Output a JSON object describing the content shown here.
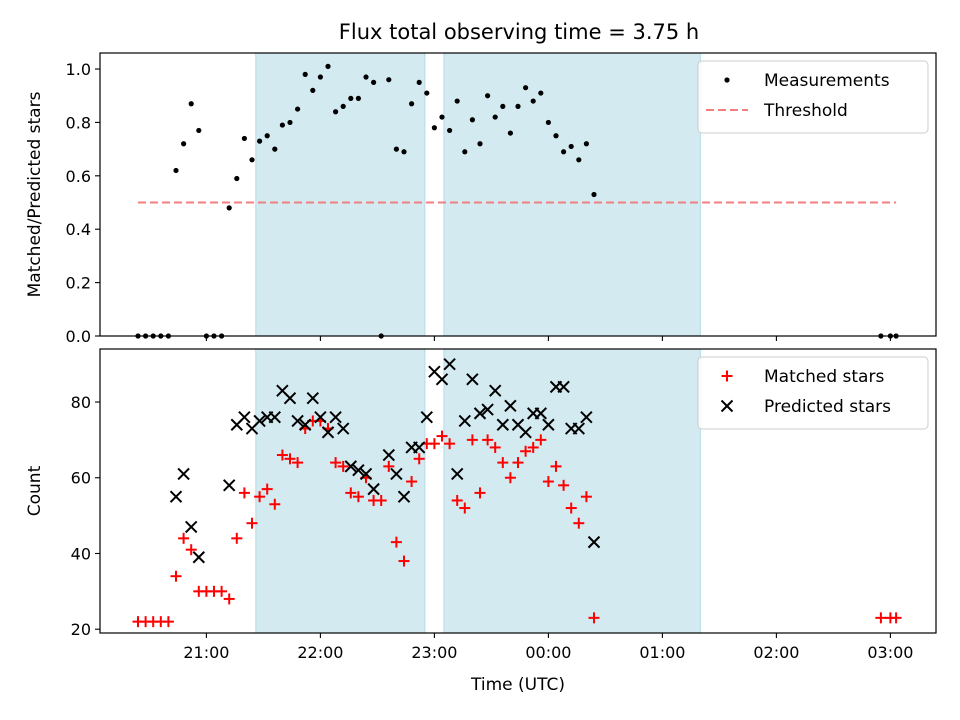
{
  "chart_data": {
    "type": "scatter",
    "title": "Flux total observing time = 3.75 h",
    "x_format": "HH:MM",
    "xlabel": "Time (UTC)",
    "xlim": [
      "2020-01-01T20:04:00",
      "2020-01-02T03:24:00"
    ],
    "xticks": [
      "21:00",
      "22:00",
      "23:00",
      "00:00",
      "01:00",
      "02:00",
      "03:00"
    ],
    "shaded_intervals": [
      {
        "start": "2020-01-01T21:26:00",
        "end": "2020-01-01T22:55:00",
        "color": "#d3eaf0"
      },
      {
        "start": "2020-01-01T23:05:00",
        "end": "2020-01-02T01:20:00",
        "color": "#d3eaf0"
      }
    ],
    "panels": [
      {
        "ylabel": "Matched/Predicted stars",
        "ylim": [
          0,
          1.06
        ],
        "yticks": [
          0.0,
          0.2,
          0.4,
          0.6,
          0.8,
          1.0
        ],
        "threshold": {
          "name": "Threshold",
          "value": 0.5,
          "x_start": "2020-01-01T20:24:00",
          "x_end": "2020-01-02T03:03:00",
          "color": "#f08080"
        },
        "legend": {
          "position": "upper right",
          "entries": [
            {
              "label": "Measurements",
              "marker": "dot"
            },
            {
              "label": "Threshold",
              "marker": "dashed-line"
            }
          ]
        },
        "series": [
          {
            "name": "Measurements",
            "color": "#000000",
            "marker": "dot",
            "points": [
              [
                "2020-01-01T20:24:00",
                0.0
              ],
              [
                "2020-01-01T20:28:00",
                0.0
              ],
              [
                "2020-01-01T20:32:00",
                0.0
              ],
              [
                "2020-01-01T20:36:00",
                0.0
              ],
              [
                "2020-01-01T20:40:00",
                0.0
              ],
              [
                "2020-01-01T20:44:00",
                0.62
              ],
              [
                "2020-01-01T20:48:00",
                0.72
              ],
              [
                "2020-01-01T20:52:00",
                0.87
              ],
              [
                "2020-01-01T20:56:00",
                0.77
              ],
              [
                "2020-01-01T21:00:00",
                0.0
              ],
              [
                "2020-01-01T21:04:00",
                0.0
              ],
              [
                "2020-01-01T21:08:00",
                0.0
              ],
              [
                "2020-01-01T21:12:00",
                0.48
              ],
              [
                "2020-01-01T21:16:00",
                0.59
              ],
              [
                "2020-01-01T21:20:00",
                0.74
              ],
              [
                "2020-01-01T21:24:00",
                0.66
              ],
              [
                "2020-01-01T21:28:00",
                0.73
              ],
              [
                "2020-01-01T21:32:00",
                0.75
              ],
              [
                "2020-01-01T21:36:00",
                0.7
              ],
              [
                "2020-01-01T21:40:00",
                0.79
              ],
              [
                "2020-01-01T21:44:00",
                0.8
              ],
              [
                "2020-01-01T21:48:00",
                0.85
              ],
              [
                "2020-01-01T21:52:00",
                0.98
              ],
              [
                "2020-01-01T21:56:00",
                0.92
              ],
              [
                "2020-01-01T22:00:00",
                0.97
              ],
              [
                "2020-01-01T22:04:00",
                1.01
              ],
              [
                "2020-01-01T22:08:00",
                0.84
              ],
              [
                "2020-01-01T22:12:00",
                0.86
              ],
              [
                "2020-01-01T22:16:00",
                0.89
              ],
              [
                "2020-01-01T22:20:00",
                0.89
              ],
              [
                "2020-01-01T22:24:00",
                0.97
              ],
              [
                "2020-01-01T22:28:00",
                0.95
              ],
              [
                "2020-01-01T22:32:00",
                0.0
              ],
              [
                "2020-01-01T22:36:00",
                0.96
              ],
              [
                "2020-01-01T22:40:00",
                0.7
              ],
              [
                "2020-01-01T22:44:00",
                0.69
              ],
              [
                "2020-01-01T22:48:00",
                0.87
              ],
              [
                "2020-01-01T22:52:00",
                0.95
              ],
              [
                "2020-01-01T22:56:00",
                0.91
              ],
              [
                "2020-01-01T23:00:00",
                0.78
              ],
              [
                "2020-01-01T23:04:00",
                0.82
              ],
              [
                "2020-01-01T23:08:00",
                0.77
              ],
              [
                "2020-01-01T23:12:00",
                0.88
              ],
              [
                "2020-01-01T23:16:00",
                0.69
              ],
              [
                "2020-01-01T23:20:00",
                0.81
              ],
              [
                "2020-01-01T23:24:00",
                0.72
              ],
              [
                "2020-01-01T23:28:00",
                0.9
              ],
              [
                "2020-01-01T23:32:00",
                0.82
              ],
              [
                "2020-01-01T23:36:00",
                0.86
              ],
              [
                "2020-01-01T23:40:00",
                0.76
              ],
              [
                "2020-01-01T23:44:00",
                0.86
              ],
              [
                "2020-01-01T23:48:00",
                0.93
              ],
              [
                "2020-01-01T23:52:00",
                0.88
              ],
              [
                "2020-01-01T23:56:00",
                0.91
              ],
              [
                "2020-01-02T00:00:00",
                0.8
              ],
              [
                "2020-01-02T00:04:00",
                0.75
              ],
              [
                "2020-01-02T00:08:00",
                0.69
              ],
              [
                "2020-01-02T00:12:00",
                0.71
              ],
              [
                "2020-01-02T00:16:00",
                0.66
              ],
              [
                "2020-01-02T00:20:00",
                0.72
              ],
              [
                "2020-01-02T00:24:00",
                0.53
              ],
              [
                "2020-01-02T02:55:00",
                0.0
              ],
              [
                "2020-01-02T03:00:00",
                0.0
              ],
              [
                "2020-01-02T03:03:00",
                0.0
              ]
            ]
          }
        ]
      },
      {
        "ylabel": "Count",
        "ylim": [
          19,
          94
        ],
        "yticks": [
          20,
          40,
          60,
          80
        ],
        "legend": {
          "position": "upper right",
          "entries": [
            {
              "label": "Matched stars",
              "marker": "plus"
            },
            {
              "label": "Predicted stars",
              "marker": "x"
            }
          ]
        },
        "series": [
          {
            "name": "Matched stars",
            "color": "#ff0000",
            "marker": "plus",
            "points": [
              [
                "2020-01-01T20:24:00",
                22
              ],
              [
                "2020-01-01T20:28:00",
                22
              ],
              [
                "2020-01-01T20:32:00",
                22
              ],
              [
                "2020-01-01T20:36:00",
                22
              ],
              [
                "2020-01-01T20:40:00",
                22
              ],
              [
                "2020-01-01T20:44:00",
                34
              ],
              [
                "2020-01-01T20:48:00",
                44
              ],
              [
                "2020-01-01T20:52:00",
                41
              ],
              [
                "2020-01-01T20:56:00",
                30
              ],
              [
                "2020-01-01T21:00:00",
                30
              ],
              [
                "2020-01-01T21:04:00",
                30
              ],
              [
                "2020-01-01T21:08:00",
                30
              ],
              [
                "2020-01-01T21:12:00",
                28
              ],
              [
                "2020-01-01T21:16:00",
                44
              ],
              [
                "2020-01-01T21:20:00",
                56
              ],
              [
                "2020-01-01T21:24:00",
                48
              ],
              [
                "2020-01-01T21:28:00",
                55
              ],
              [
                "2020-01-01T21:32:00",
                57
              ],
              [
                "2020-01-01T21:36:00",
                53
              ],
              [
                "2020-01-01T21:40:00",
                66
              ],
              [
                "2020-01-01T21:44:00",
                65
              ],
              [
                "2020-01-01T21:48:00",
                64
              ],
              [
                "2020-01-01T21:52:00",
                73
              ],
              [
                "2020-01-01T21:56:00",
                75
              ],
              [
                "2020-01-01T22:00:00",
                75
              ],
              [
                "2020-01-01T22:04:00",
                73
              ],
              [
                "2020-01-01T22:08:00",
                64
              ],
              [
                "2020-01-01T22:12:00",
                63
              ],
              [
                "2020-01-01T22:16:00",
                56
              ],
              [
                "2020-01-01T22:20:00",
                55
              ],
              [
                "2020-01-01T22:24:00",
                60
              ],
              [
                "2020-01-01T22:28:00",
                54
              ],
              [
                "2020-01-01T22:32:00",
                54
              ],
              [
                "2020-01-01T22:36:00",
                63
              ],
              [
                "2020-01-01T22:40:00",
                43
              ],
              [
                "2020-01-01T22:44:00",
                38
              ],
              [
                "2020-01-01T22:48:00",
                59
              ],
              [
                "2020-01-01T22:52:00",
                65
              ],
              [
                "2020-01-01T22:56:00",
                69
              ],
              [
                "2020-01-01T23:00:00",
                69
              ],
              [
                "2020-01-01T23:04:00",
                71
              ],
              [
                "2020-01-01T23:08:00",
                69
              ],
              [
                "2020-01-01T23:12:00",
                54
              ],
              [
                "2020-01-01T23:16:00",
                52
              ],
              [
                "2020-01-01T23:20:00",
                70
              ],
              [
                "2020-01-01T23:24:00",
                56
              ],
              [
                "2020-01-01T23:28:00",
                70
              ],
              [
                "2020-01-01T23:32:00",
                68
              ],
              [
                "2020-01-01T23:36:00",
                64
              ],
              [
                "2020-01-01T23:40:00",
                60
              ],
              [
                "2020-01-01T23:44:00",
                64
              ],
              [
                "2020-01-01T23:48:00",
                67
              ],
              [
                "2020-01-01T23:52:00",
                68
              ],
              [
                "2020-01-01T23:56:00",
                70
              ],
              [
                "2020-01-02T00:00:00",
                59
              ],
              [
                "2020-01-02T00:04:00",
                63
              ],
              [
                "2020-01-02T00:08:00",
                58
              ],
              [
                "2020-01-02T00:12:00",
                52
              ],
              [
                "2020-01-02T00:16:00",
                48
              ],
              [
                "2020-01-02T00:20:00",
                55
              ],
              [
                "2020-01-02T00:24:00",
                23
              ],
              [
                "2020-01-02T02:55:00",
                23
              ],
              [
                "2020-01-02T03:00:00",
                23
              ],
              [
                "2020-01-02T03:03:00",
                23
              ]
            ]
          },
          {
            "name": "Predicted stars",
            "color": "#000000",
            "marker": "x",
            "points": [
              [
                "2020-01-01T20:44:00",
                55
              ],
              [
                "2020-01-01T20:48:00",
                61
              ],
              [
                "2020-01-01T20:52:00",
                47
              ],
              [
                "2020-01-01T20:56:00",
                39
              ],
              [
                "2020-01-01T21:12:00",
                58
              ],
              [
                "2020-01-01T21:16:00",
                74
              ],
              [
                "2020-01-01T21:20:00",
                76
              ],
              [
                "2020-01-01T21:24:00",
                73
              ],
              [
                "2020-01-01T21:28:00",
                75
              ],
              [
                "2020-01-01T21:32:00",
                76
              ],
              [
                "2020-01-01T21:36:00",
                76
              ],
              [
                "2020-01-01T21:40:00",
                83
              ],
              [
                "2020-01-01T21:44:00",
                81
              ],
              [
                "2020-01-01T21:48:00",
                75
              ],
              [
                "2020-01-01T21:52:00",
                74
              ],
              [
                "2020-01-01T21:56:00",
                81
              ],
              [
                "2020-01-01T22:00:00",
                76
              ],
              [
                "2020-01-01T22:04:00",
                72
              ],
              [
                "2020-01-01T22:08:00",
                76
              ],
              [
                "2020-01-01T22:12:00",
                73
              ],
              [
                "2020-01-01T22:16:00",
                63
              ],
              [
                "2020-01-01T22:20:00",
                62
              ],
              [
                "2020-01-01T22:24:00",
                61
              ],
              [
                "2020-01-01T22:28:00",
                57
              ],
              [
                "2020-01-01T22:36:00",
                66
              ],
              [
                "2020-01-01T22:40:00",
                61
              ],
              [
                "2020-01-01T22:44:00",
                55
              ],
              [
                "2020-01-01T22:48:00",
                68
              ],
              [
                "2020-01-01T22:52:00",
                68
              ],
              [
                "2020-01-01T22:56:00",
                76
              ],
              [
                "2020-01-01T23:00:00",
                88
              ],
              [
                "2020-01-01T23:04:00",
                86
              ],
              [
                "2020-01-01T23:08:00",
                90
              ],
              [
                "2020-01-01T23:12:00",
                61
              ],
              [
                "2020-01-01T23:16:00",
                75
              ],
              [
                "2020-01-01T23:20:00",
                86
              ],
              [
                "2020-01-01T23:24:00",
                77
              ],
              [
                "2020-01-01T23:28:00",
                78
              ],
              [
                "2020-01-01T23:32:00",
                83
              ],
              [
                "2020-01-01T23:36:00",
                74
              ],
              [
                "2020-01-01T23:40:00",
                79
              ],
              [
                "2020-01-01T23:44:00",
                74
              ],
              [
                "2020-01-01T23:48:00",
                72
              ],
              [
                "2020-01-01T23:52:00",
                77
              ],
              [
                "2020-01-01T23:56:00",
                77
              ],
              [
                "2020-01-02T00:00:00",
                74
              ],
              [
                "2020-01-02T00:04:00",
                84
              ],
              [
                "2020-01-02T00:08:00",
                84
              ],
              [
                "2020-01-02T00:12:00",
                73
              ],
              [
                "2020-01-02T00:16:00",
                73
              ],
              [
                "2020-01-02T00:20:00",
                76
              ],
              [
                "2020-01-02T00:24:00",
                43
              ]
            ]
          }
        ]
      }
    ]
  }
}
